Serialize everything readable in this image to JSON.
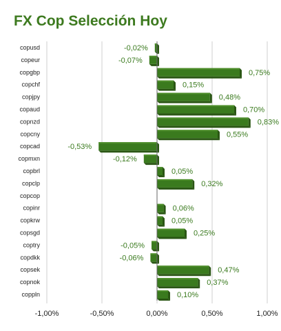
{
  "chart_data": {
    "type": "bar",
    "orientation": "horizontal",
    "title": "FX Cop Selección Hoy",
    "categories": [
      "copusd",
      "copeur",
      "copgbp",
      "copchf",
      "copjpy",
      "copaud",
      "copnzd",
      "copcny",
      "copcad",
      "copmxn",
      "copbrl",
      "copclp",
      "copcop",
      "copinr",
      "copkrw",
      "copsgd",
      "coptry",
      "copdkk",
      "copsek",
      "copnok",
      "coppln"
    ],
    "values": [
      -0.02,
      -0.07,
      0.75,
      0.15,
      0.48,
      0.7,
      0.83,
      0.55,
      -0.53,
      -0.12,
      0.05,
      0.32,
      null,
      0.06,
      0.05,
      0.25,
      -0.05,
      -0.06,
      0.47,
      0.37,
      0.1
    ],
    "labels": [
      "-0,02%",
      "-0,07%",
      "0,75%",
      "0,15%",
      "0,48%",
      "0,70%",
      "0,83%",
      "0,55%",
      "-0,53%",
      "-0,12%",
      "0,05%",
      "0,32%",
      "",
      "0,06%",
      "0,05%",
      "0,25%",
      "-0,05%",
      "-0,06%",
      "0,47%",
      "0,37%",
      "0,10%"
    ],
    "xlim": [
      -1.0,
      1.0
    ],
    "xticks": [
      -1.0,
      -0.5,
      0.0,
      0.5,
      1.0
    ],
    "xtick_labels": [
      "-1,00%",
      "-0,50%",
      "0,00%",
      "0,50%",
      "1,00%"
    ],
    "grid": true,
    "legend": "none",
    "colors": {
      "bar_front": "#3a7a1e",
      "bar_side": "#2a5614",
      "bar_top": "#4f8f2c",
      "label": "#3a7a1e",
      "title": "#3d7a1f"
    }
  }
}
